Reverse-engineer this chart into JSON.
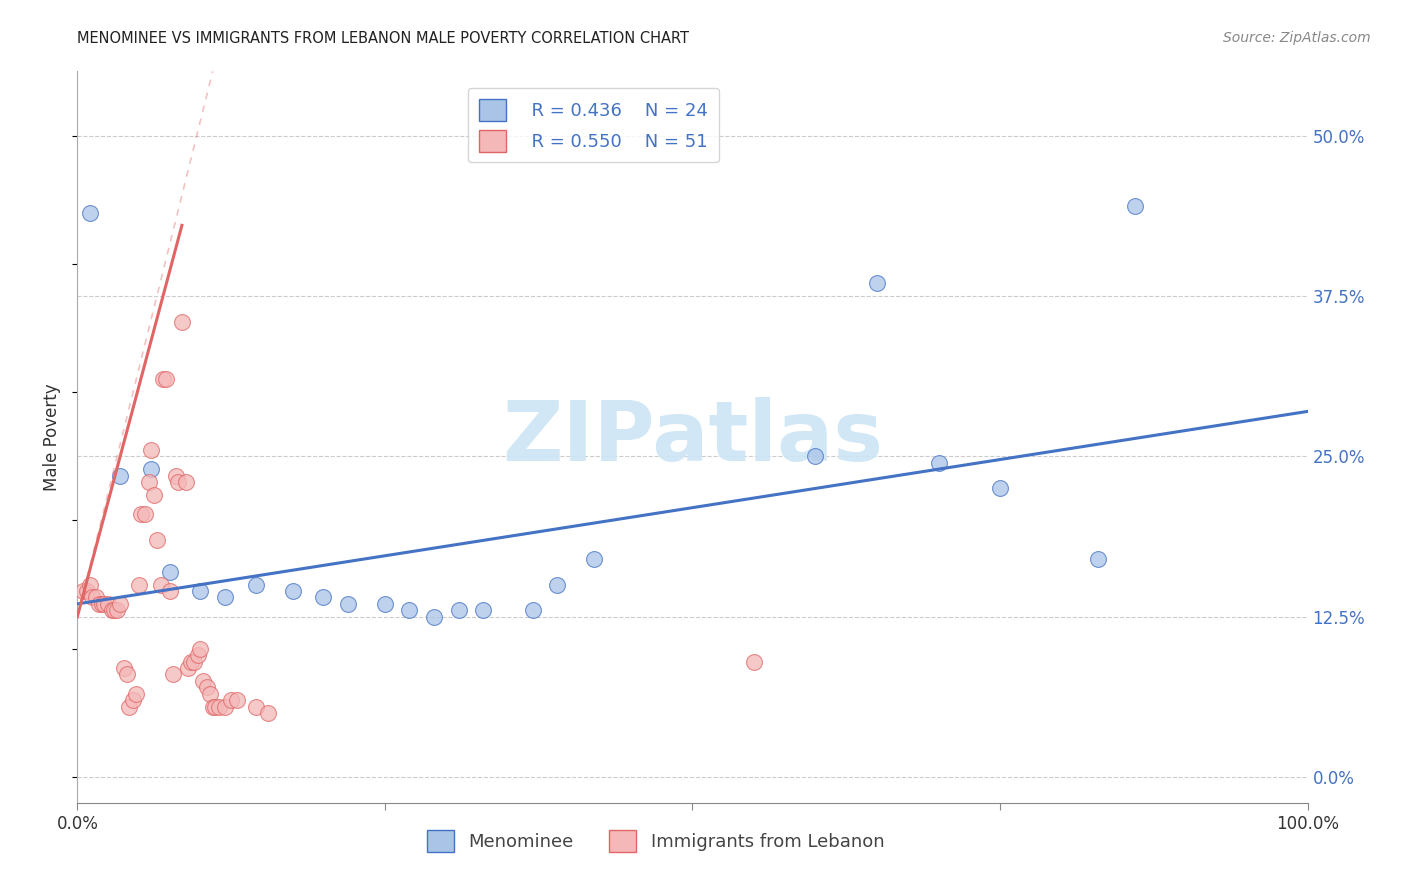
{
  "title": "MENOMINEE VS IMMIGRANTS FROM LEBANON MALE POVERTY CORRELATION CHART",
  "source": "Source: ZipAtlas.com",
  "ylabel": "Male Poverty",
  "ytick_values": [
    0.0,
    12.5,
    25.0,
    37.5,
    50.0
  ],
  "xlim": [
    0,
    100
  ],
  "ylim": [
    -2,
    55
  ],
  "menominee_color": "#aac4e8",
  "lebanon_color": "#f4b8b8",
  "menominee_edge": "#4472c4",
  "lebanon_edge": "#e06666",
  "trend_blue": "#4472c4",
  "trend_pink": "#e06666",
  "watermark_color": "#cce5f5",
  "legend_R_blue": "R = 0.436",
  "legend_N_blue": "N = 24",
  "legend_R_pink": "R = 0.550",
  "legend_N_pink": "N = 51",
  "menominee_x": [
    1.0,
    3.5,
    6.0,
    7.5,
    10.0,
    12.0,
    14.5,
    17.5,
    20.0,
    22.0,
    25.0,
    27.0,
    29.0,
    31.0,
    33.0,
    37.0,
    39.0,
    42.0,
    60.0,
    65.0,
    70.0,
    75.0,
    83.0,
    86.0
  ],
  "menominee_y": [
    44.0,
    23.5,
    24.0,
    16.0,
    14.5,
    14.0,
    15.0,
    14.5,
    14.0,
    13.5,
    13.5,
    13.0,
    12.5,
    13.0,
    13.0,
    13.0,
    15.0,
    17.0,
    25.0,
    38.5,
    24.5,
    22.5,
    17.0,
    44.5
  ],
  "lebanon_x": [
    0.5,
    0.8,
    1.0,
    1.2,
    1.5,
    1.8,
    2.0,
    2.2,
    2.5,
    2.8,
    3.0,
    3.2,
    3.5,
    3.8,
    4.0,
    4.2,
    4.5,
    4.8,
    5.0,
    5.2,
    5.5,
    5.8,
    6.0,
    6.2,
    6.5,
    6.8,
    7.0,
    7.2,
    7.5,
    7.8,
    8.0,
    8.2,
    8.5,
    8.8,
    9.0,
    9.2,
    9.5,
    9.8,
    10.0,
    10.2,
    10.5,
    10.8,
    11.0,
    11.2,
    11.5,
    12.0,
    12.5,
    13.0,
    14.5,
    15.5,
    55.0
  ],
  "lebanon_y": [
    14.5,
    14.5,
    15.0,
    14.0,
    14.0,
    13.5,
    13.5,
    13.5,
    13.5,
    13.0,
    13.0,
    13.0,
    13.5,
    8.5,
    8.0,
    5.5,
    6.0,
    6.5,
    15.0,
    20.5,
    20.5,
    23.0,
    25.5,
    22.0,
    18.5,
    15.0,
    31.0,
    31.0,
    14.5,
    8.0,
    23.5,
    23.0,
    35.5,
    23.0,
    8.5,
    9.0,
    9.0,
    9.5,
    10.0,
    7.5,
    7.0,
    6.5,
    5.5,
    5.5,
    5.5,
    5.5,
    6.0,
    6.0,
    5.5,
    5.0,
    9.0
  ],
  "watermark_text": "ZIPatlas",
  "blue_trend_x0": 0,
  "blue_trend_y0": 13.5,
  "blue_trend_x1": 100,
  "blue_trend_y1": 28.5,
  "pink_solid_x0": 0.0,
  "pink_solid_y0": 12.5,
  "pink_solid_x1": 8.5,
  "pink_solid_y1": 43.0,
  "pink_dash_x0": 0.0,
  "pink_dash_y0": 12.5,
  "pink_dash_x1": 11.0,
  "pink_dash_y1": 55.0
}
